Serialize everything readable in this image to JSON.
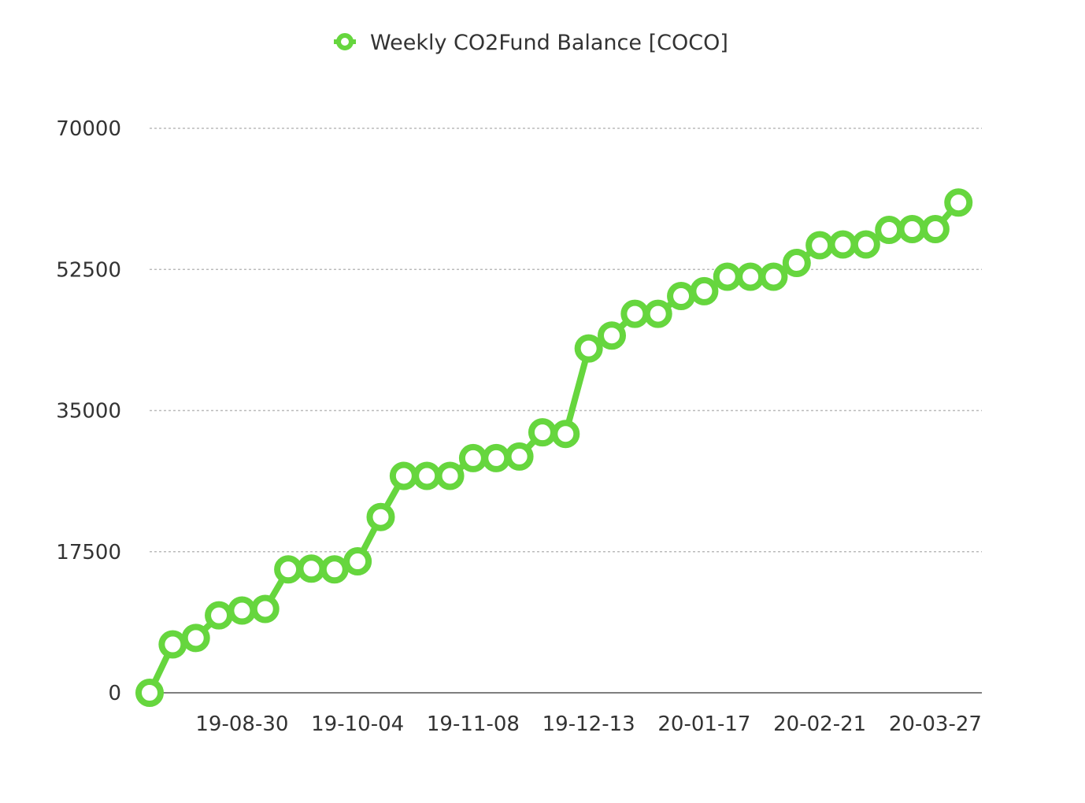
{
  "colors": {
    "series": "#66d63e"
  },
  "chart_data": {
    "type": "line",
    "title": "",
    "xlabel": "",
    "ylabel": "",
    "ylim": [
      0,
      70000
    ],
    "yticks": [
      "0",
      "17500",
      "35000",
      "52500",
      "70000"
    ],
    "xticks": [
      "19-08-30",
      "19-10-04",
      "19-11-08",
      "19-12-13",
      "20-01-17",
      "20-02-21",
      "20-03-27"
    ],
    "grid": true,
    "legend": "top-center",
    "x": [
      "19-08-02",
      "19-08-09",
      "19-08-16",
      "19-08-23",
      "19-08-30",
      "19-09-06",
      "19-09-13",
      "19-09-20",
      "19-09-27",
      "19-10-04",
      "19-10-11",
      "19-10-18",
      "19-10-25",
      "19-11-01",
      "19-11-08",
      "19-11-15",
      "19-11-22",
      "19-11-29",
      "19-12-06",
      "19-12-13",
      "19-12-20",
      "19-12-27",
      "20-01-03",
      "20-01-10",
      "20-01-17",
      "20-01-24",
      "20-01-31",
      "20-02-07",
      "20-02-14",
      "20-02-21",
      "20-02-28",
      "20-03-06",
      "20-03-13",
      "20-03-20",
      "20-03-27",
      "20-04-03"
    ],
    "series": [
      {
        "name": "Weekly CO2Fund Balance [COCO]",
        "values": [
          0,
          6000,
          6800,
          9600,
          10200,
          10400,
          15300,
          15400,
          15300,
          16300,
          21800,
          26900,
          26900,
          26900,
          29100,
          29100,
          29300,
          32300,
          32100,
          42700,
          44300,
          47000,
          47000,
          49200,
          49800,
          51600,
          51600,
          51600,
          53300,
          55500,
          55600,
          55600,
          57400,
          57500,
          57500,
          60800
        ]
      }
    ]
  }
}
